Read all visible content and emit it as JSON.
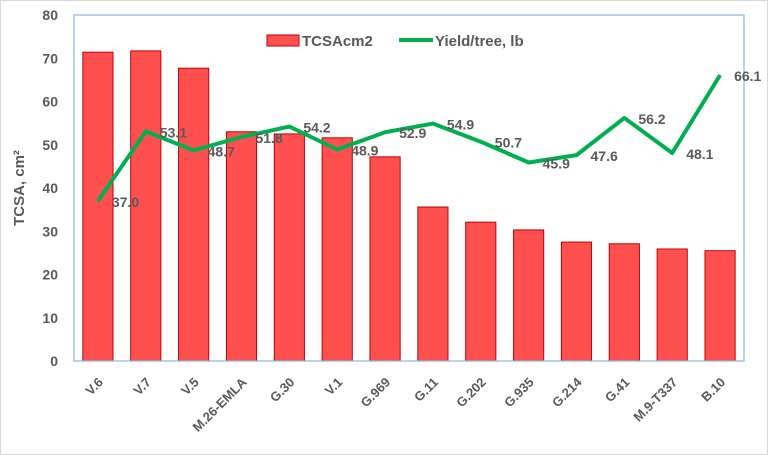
{
  "chart_data": {
    "type": "bar+line",
    "categories": [
      "V.6",
      "V.7",
      "V.5",
      "M.26-EMLA",
      "G.30",
      "V.1",
      "G.969",
      "G.11",
      "G.202",
      "G.935",
      "G.214",
      "G.41",
      "M.9-T337",
      "B.10"
    ],
    "series": [
      {
        "name": "TCSAcm2",
        "type": "bar",
        "color": "#ff5050",
        "values": [
          71.4,
          71.7,
          67.7,
          53.0,
          52.5,
          51.6,
          47.2,
          35.6,
          32.1,
          30.3,
          27.5,
          27.1,
          25.9,
          25.5
        ]
      },
      {
        "name": "Yield/tree, lb",
        "type": "line",
        "color": "#00b050",
        "values": [
          37.0,
          53.1,
          48.7,
          51.8,
          54.2,
          48.9,
          52.9,
          54.9,
          50.7,
          45.9,
          47.6,
          56.2,
          48.1,
          66.1
        ],
        "labels": [
          "37.0",
          "53.1",
          "48.7",
          "51.8",
          "54.2",
          "48.9",
          "52.9",
          "54.9",
          "50.7",
          "45.9",
          "47.6",
          "56.2",
          "48.1",
          "66.1"
        ]
      }
    ],
    "ylabel": "TCSA, cm²",
    "ylim": [
      0,
      80
    ],
    "yticks": [
      "0",
      "10",
      "20",
      "30",
      "40",
      "50",
      "60",
      "70",
      "80"
    ],
    "grid": false,
    "legend": "top-center"
  }
}
